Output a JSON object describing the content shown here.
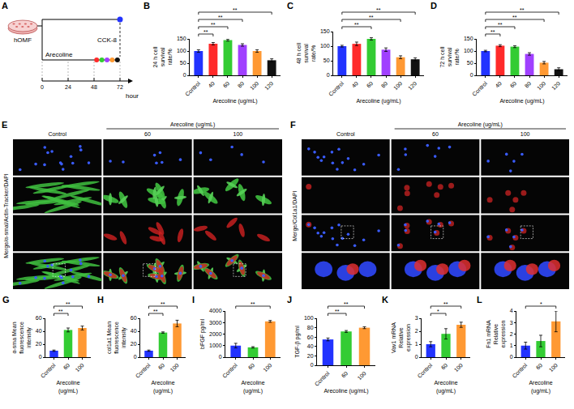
{
  "chart_data": [
    {
      "letter": "B",
      "type": "bar",
      "categories": [
        "Control",
        "40",
        "60",
        "80",
        "100",
        "120"
      ],
      "values": [
        100,
        130,
        145,
        125,
        100,
        62
      ],
      "errors": [
        5,
        5,
        4,
        5,
        5,
        6
      ],
      "colors": [
        "#2233ff",
        "#ff2a2a",
        "#33cc33",
        "#a040ff",
        "#ff9933",
        "#111111"
      ],
      "ylim": [
        0,
        150
      ],
      "yticks": [
        0,
        50,
        100,
        150
      ],
      "grid": false,
      "y_label": "24 h cell survival rate/%",
      "x_label": "Arecoline (ug/mL)",
      "annotations": [
        {
          "from": "Control",
          "to": "40",
          "text": "**"
        },
        {
          "from": "Control",
          "to": "60",
          "text": "**"
        },
        {
          "from": "Control",
          "to": "80",
          "text": "**"
        },
        {
          "from": "Control",
          "to": "120",
          "text": "**"
        }
      ]
    },
    {
      "letter": "C",
      "type": "bar",
      "categories": [
        "Control",
        "40",
        "60",
        "80",
        "100",
        "120"
      ],
      "values": [
        100,
        108,
        125,
        88,
        62,
        55
      ],
      "errors": [
        3,
        6,
        4,
        6,
        5,
        5
      ],
      "colors": [
        "#2233ff",
        "#ff2a2a",
        "#33cc33",
        "#a040ff",
        "#ff9933",
        "#111111"
      ],
      "ylim": [
        0,
        150
      ],
      "yticks": [
        0,
        50,
        100,
        150
      ],
      "grid": false,
      "y_label": "48 h cell survival rate/%",
      "x_label": "Arecoline (ug/mL)",
      "annotations": [
        {
          "from": "Control",
          "to": "60",
          "text": "**"
        },
        {
          "from": "Control",
          "to": "100",
          "text": "**"
        },
        {
          "from": "Control",
          "to": "120",
          "text": "**"
        }
      ]
    },
    {
      "letter": "D",
      "type": "bar",
      "categories": [
        "Control",
        "40",
        "60",
        "80",
        "100",
        "120"
      ],
      "values": [
        100,
        122,
        118,
        88,
        52,
        25
      ],
      "errors": [
        3,
        4,
        4,
        5,
        5,
        6
      ],
      "colors": [
        "#2233ff",
        "#ff2a2a",
        "#33cc33",
        "#a040ff",
        "#ff9933",
        "#111111"
      ],
      "ylim": [
        0,
        150
      ],
      "yticks": [
        0,
        50,
        100,
        150
      ],
      "grid": false,
      "y_label": "72 h cell survival rate/%",
      "x_label": "Arecoline (ug/mL)",
      "annotations": [
        {
          "from": "Control",
          "to": "40",
          "text": "**"
        },
        {
          "from": "Control",
          "to": "60",
          "text": "**"
        },
        {
          "from": "Control",
          "to": "100",
          "text": "**"
        },
        {
          "from": "Control",
          "to": "120",
          "text": "**"
        }
      ]
    },
    {
      "letter": "G",
      "type": "bar",
      "categories": [
        "Control",
        "60",
        "100"
      ],
      "values": [
        10,
        42,
        45
      ],
      "errors": [
        1,
        3,
        3
      ],
      "colors": [
        "#2233ff",
        "#33cc33",
        "#ff9933"
      ],
      "ylim": [
        0,
        60
      ],
      "yticks": [
        0,
        20,
        40,
        60
      ],
      "grid": false,
      "y_label": "α-sma Mean fluorescence intensity",
      "x_label": "Arecoline (ug/mL)",
      "annotations": [
        {
          "from": "Control",
          "to": "60",
          "text": "**"
        },
        {
          "from": "Control",
          "to": "100",
          "text": "**"
        }
      ]
    },
    {
      "letter": "H",
      "type": "bar",
      "categories": [
        "Control",
        "60",
        "100"
      ],
      "values": [
        10,
        38,
        52
      ],
      "errors": [
        1,
        1,
        5
      ],
      "colors": [
        "#2233ff",
        "#33cc33",
        "#ff9933"
      ],
      "ylim": [
        0,
        60
      ],
      "yticks": [
        0,
        20,
        40,
        60
      ],
      "grid": false,
      "y_label": "col1a1 Mean fluorescence intensity",
      "x_label": "Arecoline (ug/mL)",
      "annotations": [
        {
          "from": "Control",
          "to": "60",
          "text": "**"
        },
        {
          "from": "Control",
          "to": "100",
          "text": "**"
        }
      ]
    },
    {
      "letter": "I",
      "type": "bar",
      "categories": [
        "Control",
        "60",
        "100"
      ],
      "values": [
        1000,
        850,
        3100
      ],
      "errors": [
        200,
        60,
        80
      ],
      "colors": [
        "#2233ff",
        "#33cc33",
        "#ff9933"
      ],
      "ylim": [
        0,
        4000
      ],
      "yticks": [
        0,
        1000,
        2000,
        3000,
        4000
      ],
      "grid": false,
      "y_label": "bFGF pg/ml",
      "x_label": "Arecoline (ug/mL)",
      "annotations": [
        {
          "from": "Control",
          "to": "100",
          "text": "**"
        }
      ]
    },
    {
      "letter": "J",
      "type": "bar",
      "categories": [
        "Control",
        "60",
        "100"
      ],
      "values": [
        55,
        72,
        80
      ],
      "errors": [
        3,
        2,
        2
      ],
      "colors": [
        "#2233ff",
        "#33cc33",
        "#ff9933"
      ],
      "ylim": [
        0,
        100
      ],
      "yticks": [
        0,
        20,
        40,
        60,
        80,
        100
      ],
      "grid": false,
      "y_label": "TGF-β pg/ml",
      "x_label": "Arecoline (ug/mL)",
      "annotations": [
        {
          "from": "Control",
          "to": "60",
          "text": "**"
        },
        {
          "from": "Control",
          "to": "100",
          "text": "**"
        }
      ]
    },
    {
      "letter": "K",
      "type": "bar",
      "categories": [
        "Control",
        "60",
        "100"
      ],
      "values": [
        1,
        1.8,
        2.5
      ],
      "errors": [
        0.2,
        0.4,
        0.2
      ],
      "colors": [
        "#2233ff",
        "#33cc33",
        "#ff9933"
      ],
      "ylim": [
        0,
        3
      ],
      "yticks": [
        0,
        1,
        2,
        3
      ],
      "grid": false,
      "y_label": "Vav1 mRNA Relative expression",
      "x_label": "Arecoline (ug/mL)",
      "annotations": [
        {
          "from": "Control",
          "to": "60",
          "text": "*"
        },
        {
          "from": "Control",
          "to": "100",
          "text": "**"
        }
      ]
    },
    {
      "letter": "L",
      "type": "bar",
      "categories": [
        "Control",
        "60",
        "100"
      ],
      "values": [
        1,
        1.4,
        3.1
      ],
      "errors": [
        0.3,
        0.5,
        0.9
      ],
      "colors": [
        "#2233ff",
        "#33cc33",
        "#ff9933"
      ],
      "ylim": [
        0,
        4
      ],
      "yticks": [
        0,
        1,
        2,
        3,
        4
      ],
      "grid": false,
      "y_label": "Fn1 mRNA Relative expression",
      "x_label": "Arecoline (ug/mL)",
      "annotations": [
        {
          "from": "Control",
          "to": "100",
          "text": "*"
        }
      ]
    }
  ],
  "diagram": {
    "letter": "A",
    "cell": "hOMF",
    "treatment": "Arecoline",
    "assay": "CCK-8",
    "axis_unit": "hour",
    "axis_ticks": [
      0,
      24,
      48,
      72
    ]
  },
  "image_panels": [
    {
      "letter": "E",
      "group_label": "Arecoline (ug/mL)",
      "columns": [
        "Control",
        "60",
        "100"
      ],
      "row_label": "Merge/α-smal/Actin-Tracker/DAPI"
    },
    {
      "letter": "F",
      "group_label": "Arecoline (ug/mL)",
      "columns": [
        "Control",
        "60",
        "100"
      ],
      "row_label": "Merge/Col1a1/DAPI"
    }
  ]
}
